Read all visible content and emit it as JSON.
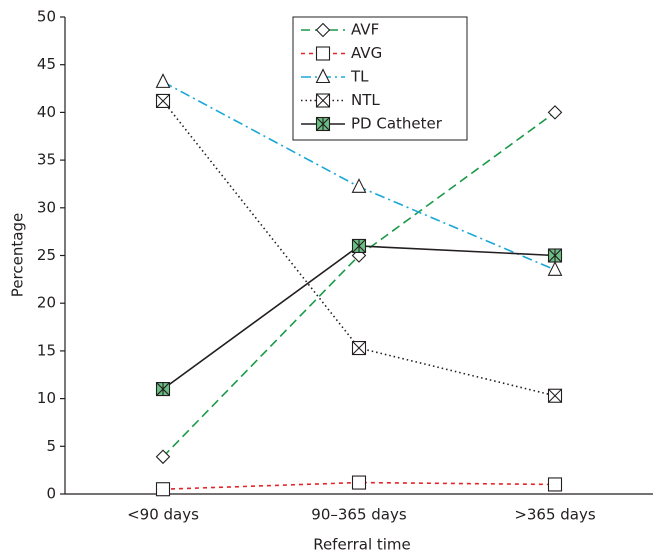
{
  "chart_data": {
    "type": "line",
    "x_label": "Referral time",
    "y_label": "Percentage",
    "categories": [
      "<90 days",
      "90–365 days",
      ">365 days"
    ],
    "series": [
      {
        "name": "AVF",
        "color": "#1a9a48",
        "line_style": "dashed",
        "marker": "diamond",
        "values": [
          3.9,
          25,
          40
        ]
      },
      {
        "name": "AVG",
        "color": "#e0262b",
        "line_style": "short-dashed",
        "marker": "square",
        "values": [
          0.5,
          1.2,
          1.0
        ]
      },
      {
        "name": "TL",
        "color": "#1aa7d8",
        "line_style": "dash-dot",
        "marker": "triangle",
        "values": [
          43.2,
          32.2,
          23.5
        ]
      },
      {
        "name": "NTL",
        "color": "#231f20",
        "line_style": "dotted",
        "marker": "boxed-x",
        "values": [
          41.2,
          15.3,
          10.3
        ]
      },
      {
        "name": "PD Catheter",
        "color": "#231f20",
        "line_style": "solid",
        "marker": "filled-star-square",
        "values": [
          11,
          26,
          25
        ]
      }
    ],
    "ylim": [
      0,
      50
    ],
    "yticks": [
      0,
      5,
      10,
      15,
      20,
      25,
      30,
      35,
      40,
      45,
      50
    ],
    "grid": false,
    "legend": "top-center"
  }
}
